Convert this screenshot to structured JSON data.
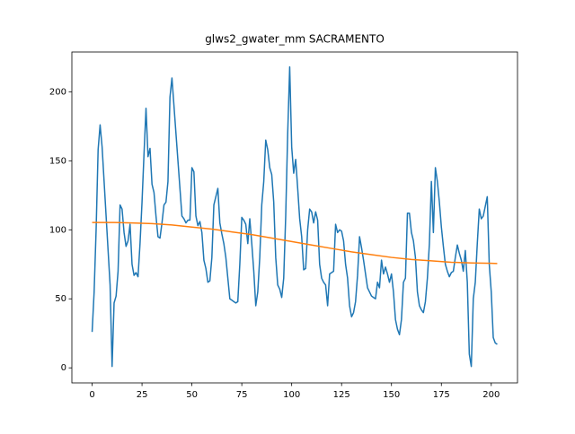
{
  "chart_data": {
    "type": "line",
    "title": "glws2_gwater_mm SACRAMENTO",
    "xlim": [
      -10.15,
      213.15
    ],
    "ylim": [
      -10.9,
      228.8
    ],
    "xticks": [
      0,
      25,
      50,
      75,
      100,
      125,
      150,
      175,
      200
    ],
    "yticks": [
      0,
      50,
      100,
      150,
      200
    ],
    "series": [
      {
        "color": "#1f77b4",
        "x": [
          0,
          1,
          2,
          3,
          4,
          5,
          6,
          7,
          8,
          9,
          10,
          11,
          12,
          13,
          14,
          15,
          16,
          17,
          18,
          19,
          20,
          21,
          22,
          23,
          24,
          25,
          26,
          27,
          28,
          29,
          30,
          31,
          32,
          33,
          34,
          35,
          36,
          37,
          38,
          39,
          40,
          41,
          42,
          43,
          44,
          45,
          46,
          47,
          48,
          49,
          50,
          51,
          52,
          53,
          54,
          55,
          56,
          57,
          58,
          59,
          60,
          61,
          62,
          63,
          64,
          65,
          66,
          67,
          68,
          69,
          70,
          71,
          72,
          73,
          74,
          75,
          76,
          77,
          78,
          79,
          80,
          81,
          82,
          83,
          84,
          85,
          86,
          87,
          88,
          89,
          90,
          91,
          92,
          93,
          94,
          95,
          96,
          97,
          98,
          99,
          100,
          101,
          102,
          103,
          104,
          105,
          106,
          107,
          108,
          109,
          110,
          111,
          112,
          113,
          114,
          115,
          116,
          117,
          118,
          119,
          120,
          121,
          122,
          123,
          124,
          125,
          126,
          127,
          128,
          129,
          130,
          131,
          132,
          133,
          134,
          135,
          136,
          137,
          138,
          139,
          140,
          141,
          142,
          143,
          144,
          145,
          146,
          147,
          148,
          149,
          150,
          151,
          152,
          153,
          154,
          155,
          156,
          157,
          158,
          159,
          160,
          161,
          162,
          163,
          164,
          165,
          166,
          167,
          168,
          169,
          170,
          171,
          172,
          173,
          174,
          175,
          176,
          177,
          178,
          179,
          180,
          181,
          182,
          183,
          184,
          185,
          186,
          187,
          188,
          189,
          190,
          191,
          192,
          193,
          194,
          195,
          196,
          197,
          198,
          199,
          200,
          201,
          202,
          203
        ],
        "values": [
          26,
          55,
          100,
          158,
          176,
          160,
          135,
          110,
          85,
          60,
          1,
          47,
          52,
          70,
          118,
          115,
          98,
          88,
          92,
          104,
          75,
          67,
          69,
          66,
          90,
          120,
          155,
          188,
          153,
          159,
          133,
          127,
          110,
          95,
          94,
          105,
          118,
          120,
          135,
          196,
          210,
          190,
          170,
          150,
          130,
          110,
          108,
          105,
          107,
          107,
          145,
          142,
          110,
          103,
          106,
          98,
          78,
          72,
          62,
          63,
          80,
          118,
          124,
          130,
          105,
          97,
          90,
          80,
          65,
          50,
          49,
          48,
          47,
          48,
          75,
          109,
          107,
          104,
          90,
          108,
          90,
          70,
          45,
          55,
          80,
          118,
          135,
          165,
          158,
          145,
          140,
          120,
          80,
          60,
          57,
          51,
          65,
          110,
          170,
          218,
          160,
          141,
          151,
          130,
          108,
          95,
          71,
          72,
          100,
          115,
          113,
          105,
          113,
          107,
          75,
          65,
          62,
          60,
          45,
          68,
          69,
          70,
          104,
          98,
          100,
          99,
          92,
          75,
          65,
          45,
          37,
          40,
          48,
          67,
          95,
          87,
          78,
          68,
          58,
          55,
          52,
          51,
          50,
          62,
          58,
          78,
          68,
          73,
          68,
          62,
          68,
          55,
          35,
          28,
          24,
          35,
          62,
          65,
          112,
          112,
          98,
          92,
          80,
          55,
          45,
          42,
          40,
          48,
          65,
          90,
          135,
          98,
          145,
          135,
          120,
          102,
          88,
          75,
          70,
          66,
          69,
          70,
          80,
          89,
          83,
          78,
          70,
          85,
          62,
          10,
          1,
          50,
          62,
          90,
          115,
          108,
          110,
          117,
          124,
          75,
          55,
          22,
          18,
          17
        ]
      },
      {
        "color": "#ff7f0e",
        "x": [
          0,
          10,
          20,
          30,
          40,
          50,
          60,
          70,
          80,
          90,
          100,
          110,
          120,
          130,
          140,
          150,
          160,
          170,
          180,
          190,
          200,
          203
        ],
        "values": [
          105.3,
          105.3,
          105,
          104.5,
          103.5,
          102,
          100.5,
          98.5,
          96.5,
          94,
          91.5,
          89,
          86.5,
          84,
          82,
          80,
          78.5,
          77.5,
          76.5,
          76,
          75.7,
          75.6
        ]
      }
    ]
  }
}
